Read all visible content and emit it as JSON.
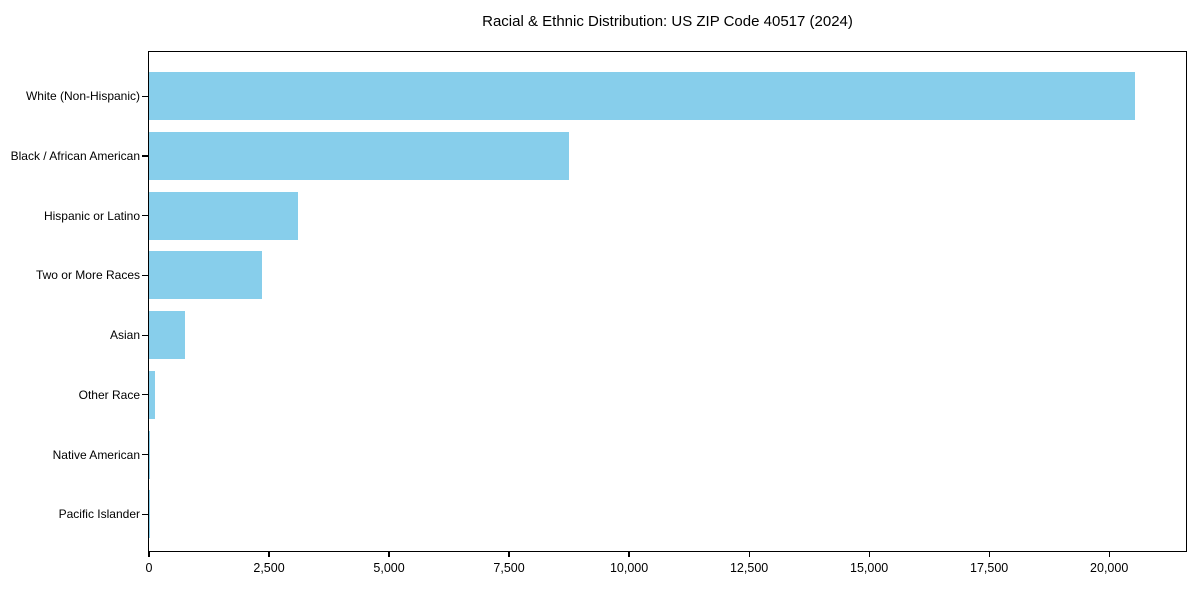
{
  "chart_data": {
    "type": "bar",
    "orientation": "horizontal",
    "title": "Racial & Ethnic Distribution: US ZIP Code 40517 (2024)",
    "categories": [
      "White (Non-Hispanic)",
      "Black / African American",
      "Hispanic or Latino",
      "Two or More Races",
      "Asian",
      "Other Race",
      "Native American",
      "Pacific Islander"
    ],
    "values": [
      20540,
      8740,
      3100,
      2360,
      740,
      120,
      15,
      5
    ],
    "xlabel": "",
    "ylabel": "",
    "xlim": [
      0,
      21600
    ],
    "xticks": [
      0,
      2500,
      5000,
      7500,
      10000,
      12500,
      15000,
      17500,
      20000
    ],
    "xtick_labels": [
      "0",
      "2,500",
      "5,000",
      "7,500",
      "10,000",
      "12,500",
      "15,000",
      "17,500",
      "20,000"
    ],
    "bar_color": "#87ceeb",
    "background_color": "#ffffff",
    "spine_color": "#000000",
    "text_color": "#000000",
    "grid": false,
    "legend": "none"
  }
}
